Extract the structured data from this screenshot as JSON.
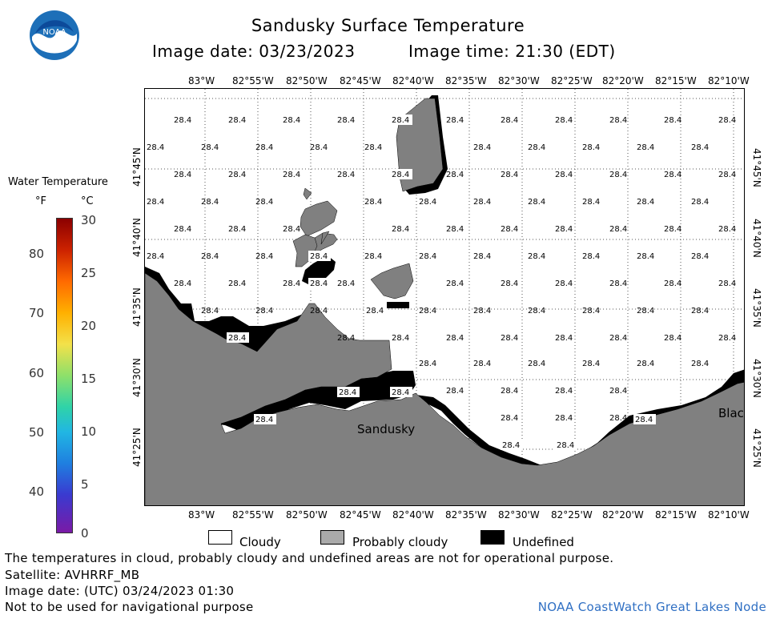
{
  "title": "Sandusky Surface Temperature",
  "image_date": "Image date: 03/23/2023",
  "image_time": "Image time: 21:30 (EDT)",
  "logo_text": "NOAA",
  "color_scale": {
    "title": "Water Temperature",
    "unit_f": "°F",
    "unit_c": "°C",
    "f_ticks": [
      "80",
      "70",
      "60",
      "50",
      "40"
    ],
    "c_ticks": [
      "30",
      "25",
      "20",
      "15",
      "10",
      "5",
      "0"
    ]
  },
  "longitude_labels": [
    "83°W",
    "82°55'W",
    "82°50'W",
    "82°45'W",
    "82°40'W",
    "82°35'W",
    "82°30'W",
    "82°25'W",
    "82°20'W",
    "82°15'W",
    "82°10'W"
  ],
  "latitude_labels": [
    "41°45'N",
    "41°40'N",
    "41°35'N",
    "41°30'N",
    "41°25'N"
  ],
  "place_labels": [
    "Sandusky",
    "Blac"
  ],
  "temperature_value": "28.4",
  "legend": {
    "cloudy": "Cloudy",
    "probably_cloudy": "Probably cloudy",
    "undefined": "Undefined"
  },
  "footer": {
    "disclaimer": "The temperatures in cloud, probably cloudy and undefined areas are not for operational purpose.",
    "satellite": "Satellite: AVHRRF_MB",
    "utc_date": "Image date: (UTC) 03/24/2023  01:30",
    "nav_warning": "Not to be used for navigational purpose",
    "node": "NOAA CoastWatch Great Lakes Node"
  },
  "colors": {
    "land": "#808080",
    "undefined": "#000000",
    "cloudy": "#ffffff",
    "node_text": "#2f6fc3"
  }
}
